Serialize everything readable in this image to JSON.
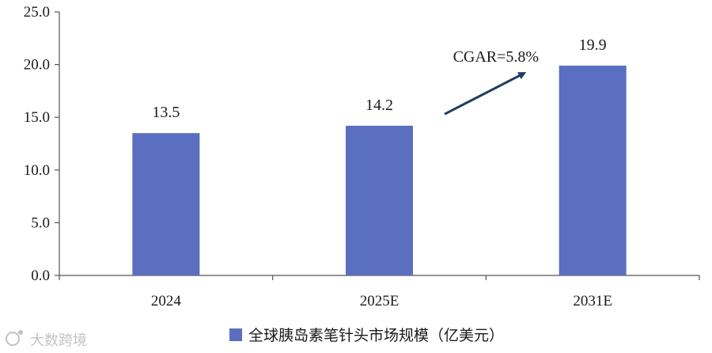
{
  "chart_data": {
    "type": "bar",
    "categories": [
      "2024",
      "2025E",
      "2031E"
    ],
    "series": [
      {
        "name": "全球胰岛素笔针头市场规模（亿美元）",
        "values": [
          13.5,
          14.2,
          19.9
        ],
        "color": "#5b6fc0"
      }
    ],
    "data_labels": [
      "13.5",
      "14.2",
      "19.9"
    ],
    "ylim": [
      0,
      25
    ],
    "yticks": [
      0,
      5,
      10,
      15,
      20,
      25
    ],
    "ytick_labels": [
      "0.0",
      "5.0",
      "10.0",
      "15.0",
      "20.0",
      "25.0"
    ],
    "grid": false,
    "legend_position": "bottom-center",
    "annotation": {
      "text": "CGAR=5.8%",
      "arrow_from": [
        "2025E",
        15.3
      ],
      "arrow_to": [
        "2031E",
        19.6
      ]
    },
    "title": "",
    "xlabel": "",
    "ylabel": ""
  },
  "watermark": {
    "text": "大数跨境"
  }
}
